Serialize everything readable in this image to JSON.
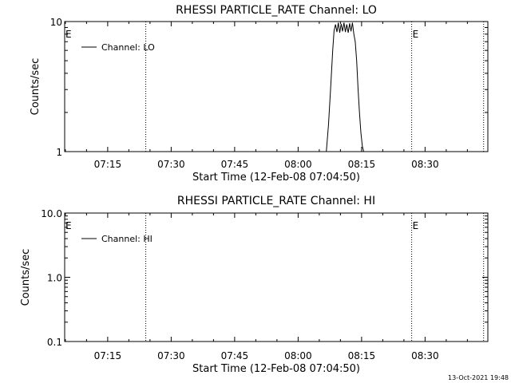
{
  "chart_data": [
    {
      "type": "line",
      "title": "RHESSI PARTICLE_RATE Channel: LO",
      "xlabel": "Start Time (12-Feb-08 07:04:50)",
      "ylabel": "Counts/sec",
      "y_scale": "log",
      "xlim": [
        "07:04:50",
        "08:44:50"
      ],
      "ylim": [
        1,
        10
      ],
      "x_ticks": [
        "07:15",
        "07:30",
        "07:45",
        "08:00",
        "08:15",
        "08:30"
      ],
      "y_ticks": [
        "1",
        "10"
      ],
      "legend_position": "top-left",
      "legend": [
        "Channel: LO"
      ],
      "markers": [
        {
          "label": "E",
          "time": "07:04:50"
        },
        {
          "label": "E",
          "time": "08:26:50"
        }
      ],
      "dotted_lines": [
        "07:24:00",
        "08:26:50",
        "08:43:50"
      ],
      "series": [
        {
          "name": "Channel: LO",
          "x": [
            "08:06:40",
            "08:07:10",
            "08:07:40",
            "08:08:10",
            "08:08:30",
            "08:08:50",
            "08:09:10",
            "08:09:30",
            "08:09:50",
            "08:10:10",
            "08:10:30",
            "08:10:50",
            "08:11:10",
            "08:11:30",
            "08:11:50",
            "08:12:10",
            "08:12:30",
            "08:12:50",
            "08:13:10",
            "08:13:30",
            "08:13:50",
            "08:14:10",
            "08:14:30",
            "08:14:50",
            "08:15:10",
            "08:15:30"
          ],
          "y": [
            1.0,
            1.6,
            3.0,
            6.0,
            8.5,
            9.5,
            8.3,
            9.8,
            8.2,
            9.6,
            8.4,
            9.8,
            8.3,
            9.5,
            8.2,
            9.7,
            8.4,
            9.8,
            8.0,
            7.0,
            5.0,
            3.0,
            2.0,
            1.4,
            1.1,
            1.0
          ]
        }
      ]
    },
    {
      "type": "line",
      "title": "RHESSI PARTICLE_RATE Channel: HI",
      "xlabel": "Start Time (12-Feb-08 07:04:50)",
      "ylabel": "Counts/sec",
      "y_scale": "log",
      "xlim": [
        "07:04:50",
        "08:44:50"
      ],
      "ylim": [
        0.1,
        10.0
      ],
      "x_ticks": [
        "07:15",
        "07:30",
        "07:45",
        "08:00",
        "08:15",
        "08:30"
      ],
      "y_ticks": [
        "0.1",
        "1.0",
        "10.0"
      ],
      "legend_position": "top-left",
      "legend": [
        "Channel: HI"
      ],
      "markers": [
        {
          "label": "E",
          "time": "07:04:50"
        },
        {
          "label": "E",
          "time": "08:26:50"
        }
      ],
      "dotted_lines": [
        "07:24:00",
        "08:26:50",
        "08:43:50"
      ],
      "series": [
        {
          "name": "Channel: HI",
          "x": [],
          "y": []
        }
      ]
    }
  ],
  "timestamp": "13-Oct-2021 19:48",
  "colors": {
    "background": "#ffffff",
    "foreground": "#000000"
  }
}
